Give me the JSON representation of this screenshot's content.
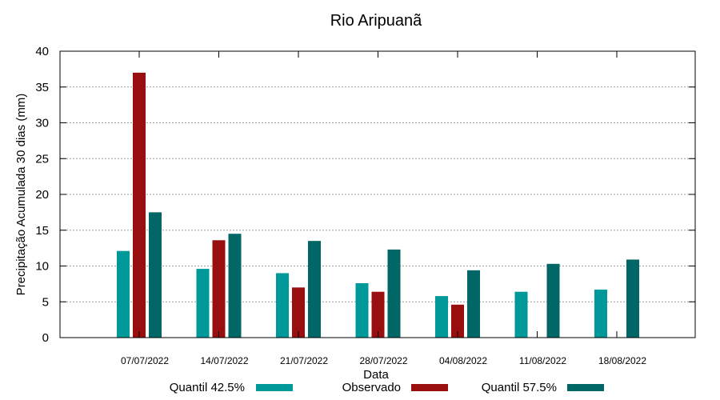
{
  "chart_data": {
    "type": "bar",
    "title": "Rio Aripuanã",
    "xlabel": "Data",
    "ylabel": "Precipitação Acumulada 30 dias (mm)",
    "ylim": [
      0,
      40
    ],
    "yticks": [
      0,
      5,
      10,
      15,
      20,
      25,
      30,
      35,
      40
    ],
    "grid": true,
    "legend_position": "bottom",
    "categories": [
      "07/07/2022",
      "14/07/2022",
      "21/07/2022",
      "28/07/2022",
      "04/08/2022",
      "11/08/2022",
      "18/08/2022"
    ],
    "series": [
      {
        "name": "Quantil 42.5%",
        "color": "#009999",
        "values": [
          12.1,
          9.6,
          9.0,
          7.6,
          5.8,
          6.4,
          6.7
        ]
      },
      {
        "name": "Observado",
        "color": "#990f0f",
        "values": [
          37.0,
          13.6,
          7.0,
          6.4,
          4.6,
          null,
          null
        ]
      },
      {
        "name": "Quantil 57.5%",
        "color": "#006666",
        "values": [
          17.5,
          14.5,
          13.5,
          12.3,
          9.4,
          10.3,
          10.9
        ]
      }
    ]
  }
}
